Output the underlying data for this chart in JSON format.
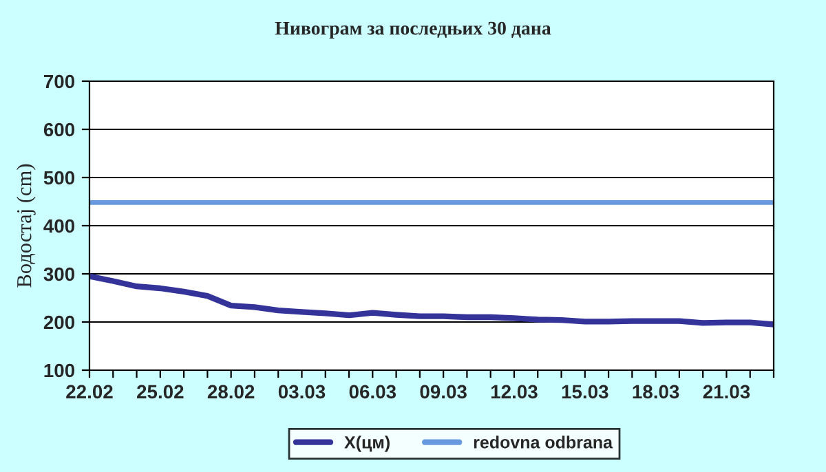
{
  "chart_data": {
    "type": "line",
    "title": "Нивограм за последњих 30 дана",
    "ylabel": "Водостај (cm)",
    "categories": [
      "22.02",
      null,
      null,
      "25.02",
      null,
      null,
      "28.02",
      null,
      null,
      "03.03",
      null,
      null,
      "06.03",
      null,
      null,
      "09.03",
      null,
      null,
      "12.03",
      null,
      null,
      "15.03",
      null,
      null,
      "18.03",
      null,
      null,
      "21.03",
      null,
      null
    ],
    "series": [
      {
        "name": "X(цм)",
        "color": "#333399",
        "values": [
          295,
          285,
          274,
          270,
          263,
          254,
          234,
          231,
          224,
          221,
          218,
          214,
          219,
          215,
          212,
          212,
          210,
          210,
          208,
          205,
          204,
          201,
          201,
          202,
          202,
          202,
          198,
          199,
          199,
          195
        ]
      },
      {
        "name": "redovna odbrana",
        "color": "#6699dd",
        "values": [
          448,
          448,
          448,
          448,
          448,
          448,
          448,
          448,
          448,
          448,
          448,
          448,
          448,
          448,
          448,
          448,
          448,
          448,
          448,
          448,
          448,
          448,
          448,
          448,
          448,
          448,
          448,
          448,
          448,
          448
        ]
      }
    ],
    "ylim": [
      100,
      700
    ],
    "yticks": [
      100,
      200,
      300,
      400,
      500,
      600,
      700
    ],
    "grid": "y",
    "legend": "bottom"
  }
}
